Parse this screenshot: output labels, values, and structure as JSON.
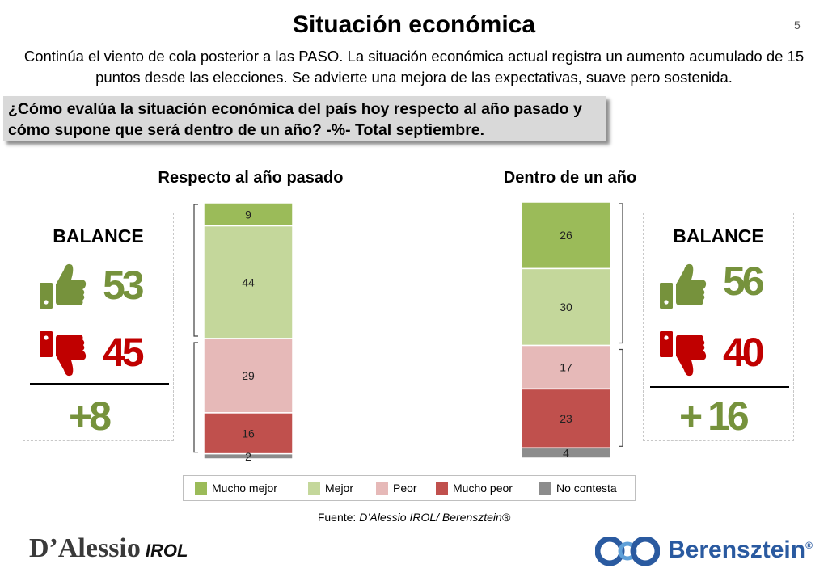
{
  "header": {
    "title": "Situación económica",
    "page_number": "5",
    "subtitle": "Continúa el viento de cola posterior a las PASO. La situación económica actual registra un aumento acumulado de 15 puntos desde las elecciones. Se advierte una mejora de las expectativas, suave pero sostenida.",
    "question": "¿Cómo evalúa  la situación económica del país hoy respecto al año pasado y cómo supone que será dentro de un año? -%- Total septiembre."
  },
  "colors": {
    "mucho_mejor": "#9bbb59",
    "mejor": "#c4d79b",
    "peor": "#e6b9b8",
    "mucho_peor": "#c0504d",
    "no_contesta": "#8c8c8c",
    "positive": "#76923c",
    "negative": "#c00000"
  },
  "chart_data": [
    {
      "type": "bar",
      "stacked": true,
      "title": "Respecto al año pasado",
      "categories": [
        "Respecto al año pasado"
      ],
      "series": [
        {
          "name": "Mucho mejor",
          "values": [
            9
          ]
        },
        {
          "name": "Mejor",
          "values": [
            44
          ]
        },
        {
          "name": "Peor",
          "values": [
            29
          ]
        },
        {
          "name": "Mucho peor",
          "values": [
            16
          ]
        },
        {
          "name": "No contesta",
          "values": [
            2
          ]
        }
      ],
      "ylim": [
        0,
        100
      ]
    },
    {
      "type": "bar",
      "stacked": true,
      "title": "Dentro de un año",
      "categories": [
        "Dentro de un año"
      ],
      "series": [
        {
          "name": "Mucho mejor",
          "values": [
            26
          ]
        },
        {
          "name": "Mejor",
          "values": [
            30
          ]
        },
        {
          "name": "Peor",
          "values": [
            17
          ]
        },
        {
          "name": "Mucho peor",
          "values": [
            23
          ]
        },
        {
          "name": "No contesta",
          "values": [
            4
          ]
        }
      ],
      "ylim": [
        0,
        100
      ]
    }
  ],
  "balance": {
    "left": {
      "title": "BALANCE",
      "positive": "53",
      "negative": "45",
      "net": "+8"
    },
    "right": {
      "title": "BALANCE",
      "positive": "56",
      "negative": "40",
      "net": "+ 16"
    }
  },
  "legend": {
    "items": [
      "Mucho mejor",
      "Mejor",
      "Peor",
      "Mucho peor",
      "No contesta"
    ],
    "placement": "bottom"
  },
  "footer": {
    "source_prefix": "Fuente: ",
    "source_name": "D’Alessio IROL/ Berensztein®",
    "logo_left_main": "D’Alessio",
    "logo_left_sub": "IROL",
    "logo_right": "Berensztein",
    "logo_right_mark": "®"
  },
  "icons": [
    "thumbs-up-icon",
    "thumbs-down-icon"
  ]
}
